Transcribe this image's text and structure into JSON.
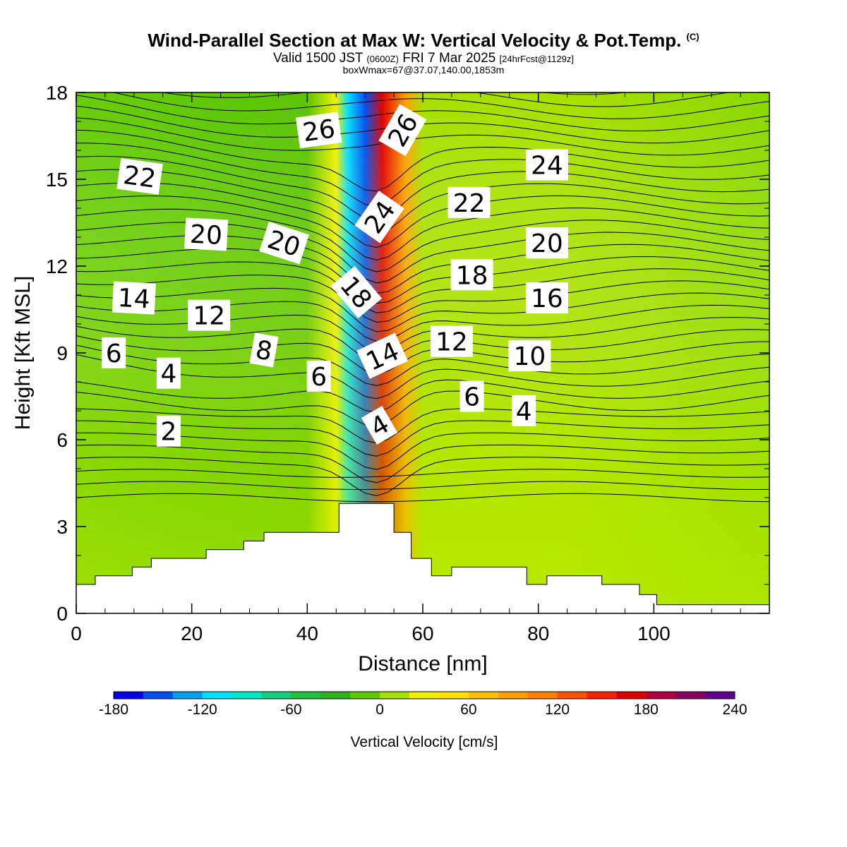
{
  "title": {
    "main": "Wind-Parallel Section at Max W: Vertical Velocity & Pot.Temp.",
    "main_suffix": "(C)",
    "sub_a": "Valid 1500 JST",
    "sub_b": "(0600Z)",
    "sub_c": "FRI 7 Mar 2025",
    "sub_d": "[24hrFcst@1129z]",
    "line3": "boxWmax=67@37.07,140.00,1853m"
  },
  "chart_data": {
    "type": "heatmap",
    "xlabel": "Distance [nm]",
    "ylabel": "Height [Kft MSL]",
    "xlim": [
      0,
      120
    ],
    "ylim": [
      0,
      18
    ],
    "xticks": [
      "0",
      "20",
      "40",
      "60",
      "80",
      "100"
    ],
    "xtick_values": [
      0,
      20,
      40,
      60,
      80,
      100
    ],
    "yticks": [
      "0",
      "3",
      "6",
      "9",
      "12",
      "15",
      "18"
    ],
    "ytick_values": [
      0,
      3,
      6,
      9,
      12,
      15,
      18
    ],
    "colorbar": {
      "label": "Vertical Velocity [cm/s]",
      "min": -180,
      "max": 240,
      "step": 20,
      "tick_labels": [
        "-180",
        "-120",
        "-60",
        "0",
        "60",
        "120",
        "180",
        "240"
      ],
      "tick_values": [
        -180,
        -120,
        -60,
        0,
        60,
        120,
        180,
        240
      ],
      "colors": [
        "#0000ee",
        "#0050f0",
        "#00a0f0",
        "#00e0ff",
        "#00e8c8",
        "#10d080",
        "#20c040",
        "#30b020",
        "#60c800",
        "#a8e000",
        "#f0f000",
        "#ffe000",
        "#ffc000",
        "#ffa000",
        "#ff8000",
        "#ff5000",
        "#ff2000",
        "#e00000",
        "#b00040",
        "#880060",
        "#600090"
      ]
    },
    "background_field": [
      {
        "x": 0,
        "color": "#68cc08"
      },
      {
        "x": 20,
        "color": "#60c806"
      },
      {
        "x": 40,
        "color": "#5cc404"
      },
      {
        "x": 45,
        "color": "#f0f000"
      },
      {
        "x": 47,
        "color": "#00e0ff"
      },
      {
        "x": 50,
        "color": "#0050f0"
      },
      {
        "x": 53,
        "color": "#e00000"
      },
      {
        "x": 57,
        "color": "#ffa000"
      },
      {
        "x": 60,
        "color": "#a8e000"
      },
      {
        "x": 85,
        "color": "#a8e000"
      },
      {
        "x": 120,
        "color": "#8ad800"
      }
    ],
    "terrain": [
      [
        0,
        1.0
      ],
      [
        3.3,
        1.0
      ],
      [
        3.3,
        1.3
      ],
      [
        9.7,
        1.3
      ],
      [
        9.7,
        1.6
      ],
      [
        13,
        1.6
      ],
      [
        13,
        1.9
      ],
      [
        22.5,
        1.9
      ],
      [
        22.5,
        2.2
      ],
      [
        29,
        2.2
      ],
      [
        29,
        2.5
      ],
      [
        32.5,
        2.5
      ],
      [
        32.5,
        2.8
      ],
      [
        45.5,
        2.8
      ],
      [
        45.5,
        3.8
      ],
      [
        55,
        3.8
      ],
      [
        55,
        2.8
      ],
      [
        58,
        2.8
      ],
      [
        58,
        1.9
      ],
      [
        61.5,
        1.9
      ],
      [
        61.5,
        1.3
      ],
      [
        65,
        1.3
      ],
      [
        65,
        1.6
      ],
      [
        78,
        1.6
      ],
      [
        78,
        1.0
      ],
      [
        81.5,
        1.0
      ],
      [
        81.5,
        1.3
      ],
      [
        91,
        1.3
      ],
      [
        91,
        1.0
      ],
      [
        97.5,
        1.0
      ],
      [
        97.5,
        0.65
      ],
      [
        100.5,
        0.65
      ],
      [
        100.5,
        0.3
      ],
      [
        120,
        0.3
      ]
    ],
    "contour_labels": [
      {
        "text": "26",
        "x": 42,
        "y": 16.7,
        "rot": -8
      },
      {
        "text": "26",
        "x": 56.5,
        "y": 16.7,
        "rot": -60
      },
      {
        "text": "22",
        "x": 11,
        "y": 15.1,
        "rot": 8
      },
      {
        "text": "24",
        "x": 81.5,
        "y": 15.5,
        "rot": 0
      },
      {
        "text": "24",
        "x": 52.5,
        "y": 13.7,
        "rot": -55
      },
      {
        "text": "22",
        "x": 68,
        "y": 14.2,
        "rot": 0
      },
      {
        "text": "20",
        "x": 22.5,
        "y": 13.1,
        "rot": 3
      },
      {
        "text": "20",
        "x": 36,
        "y": 12.8,
        "rot": 18
      },
      {
        "text": "20",
        "x": 81.5,
        "y": 12.8,
        "rot": 0
      },
      {
        "text": "18",
        "x": 68.5,
        "y": 11.7,
        "rot": 0
      },
      {
        "text": "18",
        "x": 48.5,
        "y": 11.1,
        "rot": 50
      },
      {
        "text": "16",
        "x": 81.5,
        "y": 10.9,
        "rot": 0
      },
      {
        "text": "14",
        "x": 10,
        "y": 10.9,
        "rot": 3
      },
      {
        "text": "12",
        "x": 23,
        "y": 10.3,
        "rot": 0
      },
      {
        "text": "12",
        "x": 65,
        "y": 9.4,
        "rot": 0
      },
      {
        "text": "8",
        "x": 32.5,
        "y": 9.1,
        "rot": 10
      },
      {
        "text": "14",
        "x": 53,
        "y": 8.9,
        "rot": -25
      },
      {
        "text": "10",
        "x": 78.5,
        "y": 8.9,
        "rot": 0
      },
      {
        "text": "6",
        "x": 6.5,
        "y": 9.0,
        "rot": 0
      },
      {
        "text": "4",
        "x": 16,
        "y": 8.3,
        "rot": 0
      },
      {
        "text": "6",
        "x": 42,
        "y": 8.2,
        "rot": 0
      },
      {
        "text": "6",
        "x": 68.5,
        "y": 7.5,
        "rot": 0
      },
      {
        "text": "4",
        "x": 77.5,
        "y": 7.0,
        "rot": 0
      },
      {
        "text": "4",
        "x": 52.5,
        "y": 6.5,
        "rot": -30
      },
      {
        "text": "2",
        "x": 16,
        "y": 6.3,
        "rot": 0
      }
    ]
  }
}
